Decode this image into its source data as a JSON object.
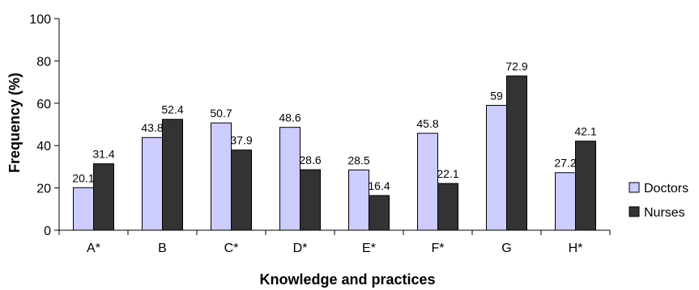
{
  "chart_data": {
    "type": "bar",
    "xlabel": "Knowledge and practices",
    "ylabel": "Frequency (%)",
    "ylim": [
      0,
      100
    ],
    "yticks": [
      0,
      20,
      40,
      60,
      80,
      100
    ],
    "categories": [
      "A*",
      "B",
      "C*",
      "D*",
      "E*",
      "F*",
      "G",
      "H*"
    ],
    "series": [
      {
        "name": "Doctors",
        "color": "#ccccff",
        "values": [
          20.1,
          43.8,
          50.7,
          48.6,
          28.5,
          45.8,
          59,
          27.2
        ]
      },
      {
        "name": "Nurses",
        "color": "#333333",
        "values": [
          31.4,
          52.4,
          37.9,
          28.6,
          16.4,
          22.1,
          72.9,
          42.1
        ]
      }
    ],
    "legend_position": "right",
    "grid": false
  }
}
